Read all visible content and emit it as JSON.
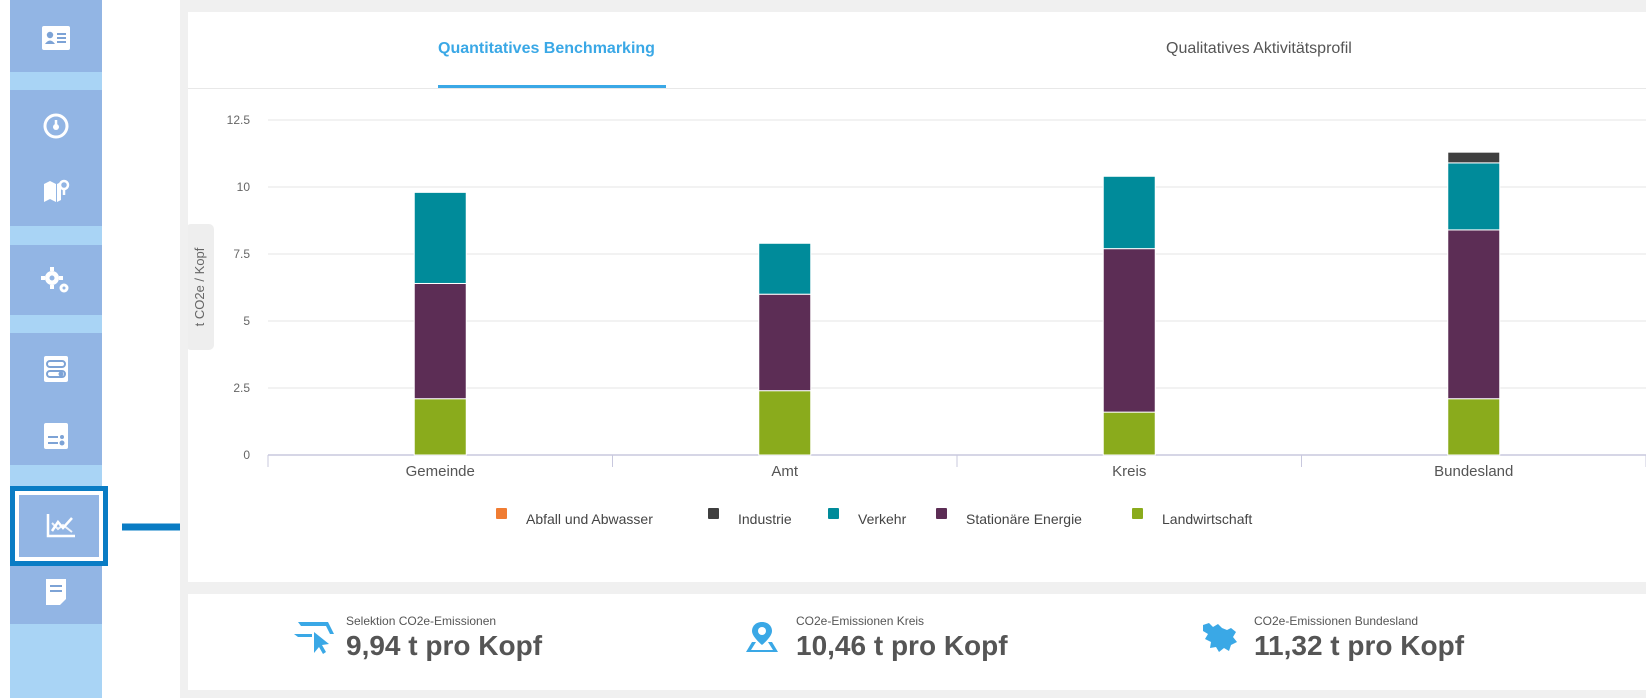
{
  "tabs": {
    "quantitative": "Quantitatives Benchmarking",
    "qualitative": "Qualitatives Aktivitätsprofil"
  },
  "chart_data": {
    "type": "bar",
    "stacked": true,
    "ylabel": "t CO2e / Kopf",
    "ylim": [
      0,
      12.5
    ],
    "yticks": [
      "0",
      "2.5",
      "5",
      "7.5",
      "10",
      "12.5"
    ],
    "yticks_values": [
      0,
      2.5,
      5,
      7.5,
      10,
      12.5
    ],
    "categories": [
      "Gemeinde",
      "Amt",
      "Kreis",
      "Bundesland"
    ],
    "series": [
      {
        "name": "Abfall und Abwasser",
        "color": "#f07c32",
        "values": [
          0,
          0,
          0,
          0
        ]
      },
      {
        "name": "Industrie",
        "color": "#3f3f3f",
        "values": [
          0,
          0,
          0,
          0.4
        ]
      },
      {
        "name": "Verkehr",
        "color": "#008b9a",
        "values": [
          3.4,
          1.9,
          2.7,
          2.5
        ]
      },
      {
        "name": "Stationäre Energie",
        "color": "#5c2d55",
        "values": [
          4.3,
          3.6,
          6.1,
          6.3
        ]
      },
      {
        "name": "Landwirtschaft",
        "color": "#8aab1c",
        "values": [
          2.1,
          2.4,
          1.6,
          2.1
        ]
      }
    ],
    "legend_position": "bottom",
    "grid": true
  },
  "stats": [
    {
      "label": "Selektion CO2e-Emissionen",
      "value": "9,94 t pro Kopf",
      "icon": "cursor-selection-icon"
    },
    {
      "label": "CO2e-Emissionen Kreis",
      "value": "10,46 t pro Kopf",
      "icon": "map-pin-icon"
    },
    {
      "label": "CO2e-Emissionen Bundesland",
      "value": "11,32 t pro Kopf",
      "icon": "state-map-icon"
    }
  ],
  "sidebar": {
    "items": [
      {
        "icon": "id-card-icon"
      },
      {
        "icon": "speedometer-icon"
      },
      {
        "icon": "map-pin-icon"
      },
      {
        "icon": "gears-icon"
      },
      {
        "icon": "toggle-panel-icon"
      },
      {
        "icon": "sliders-icon"
      },
      {
        "icon": "chart-trend-icon",
        "active": true
      },
      {
        "icon": "document-icon"
      }
    ]
  },
  "colors": {
    "accent": "#3aa8e6",
    "sidebar_light": "#a9d4f5",
    "sidebar_block": "#92b5e4",
    "highlight": "#0a7cc4"
  }
}
